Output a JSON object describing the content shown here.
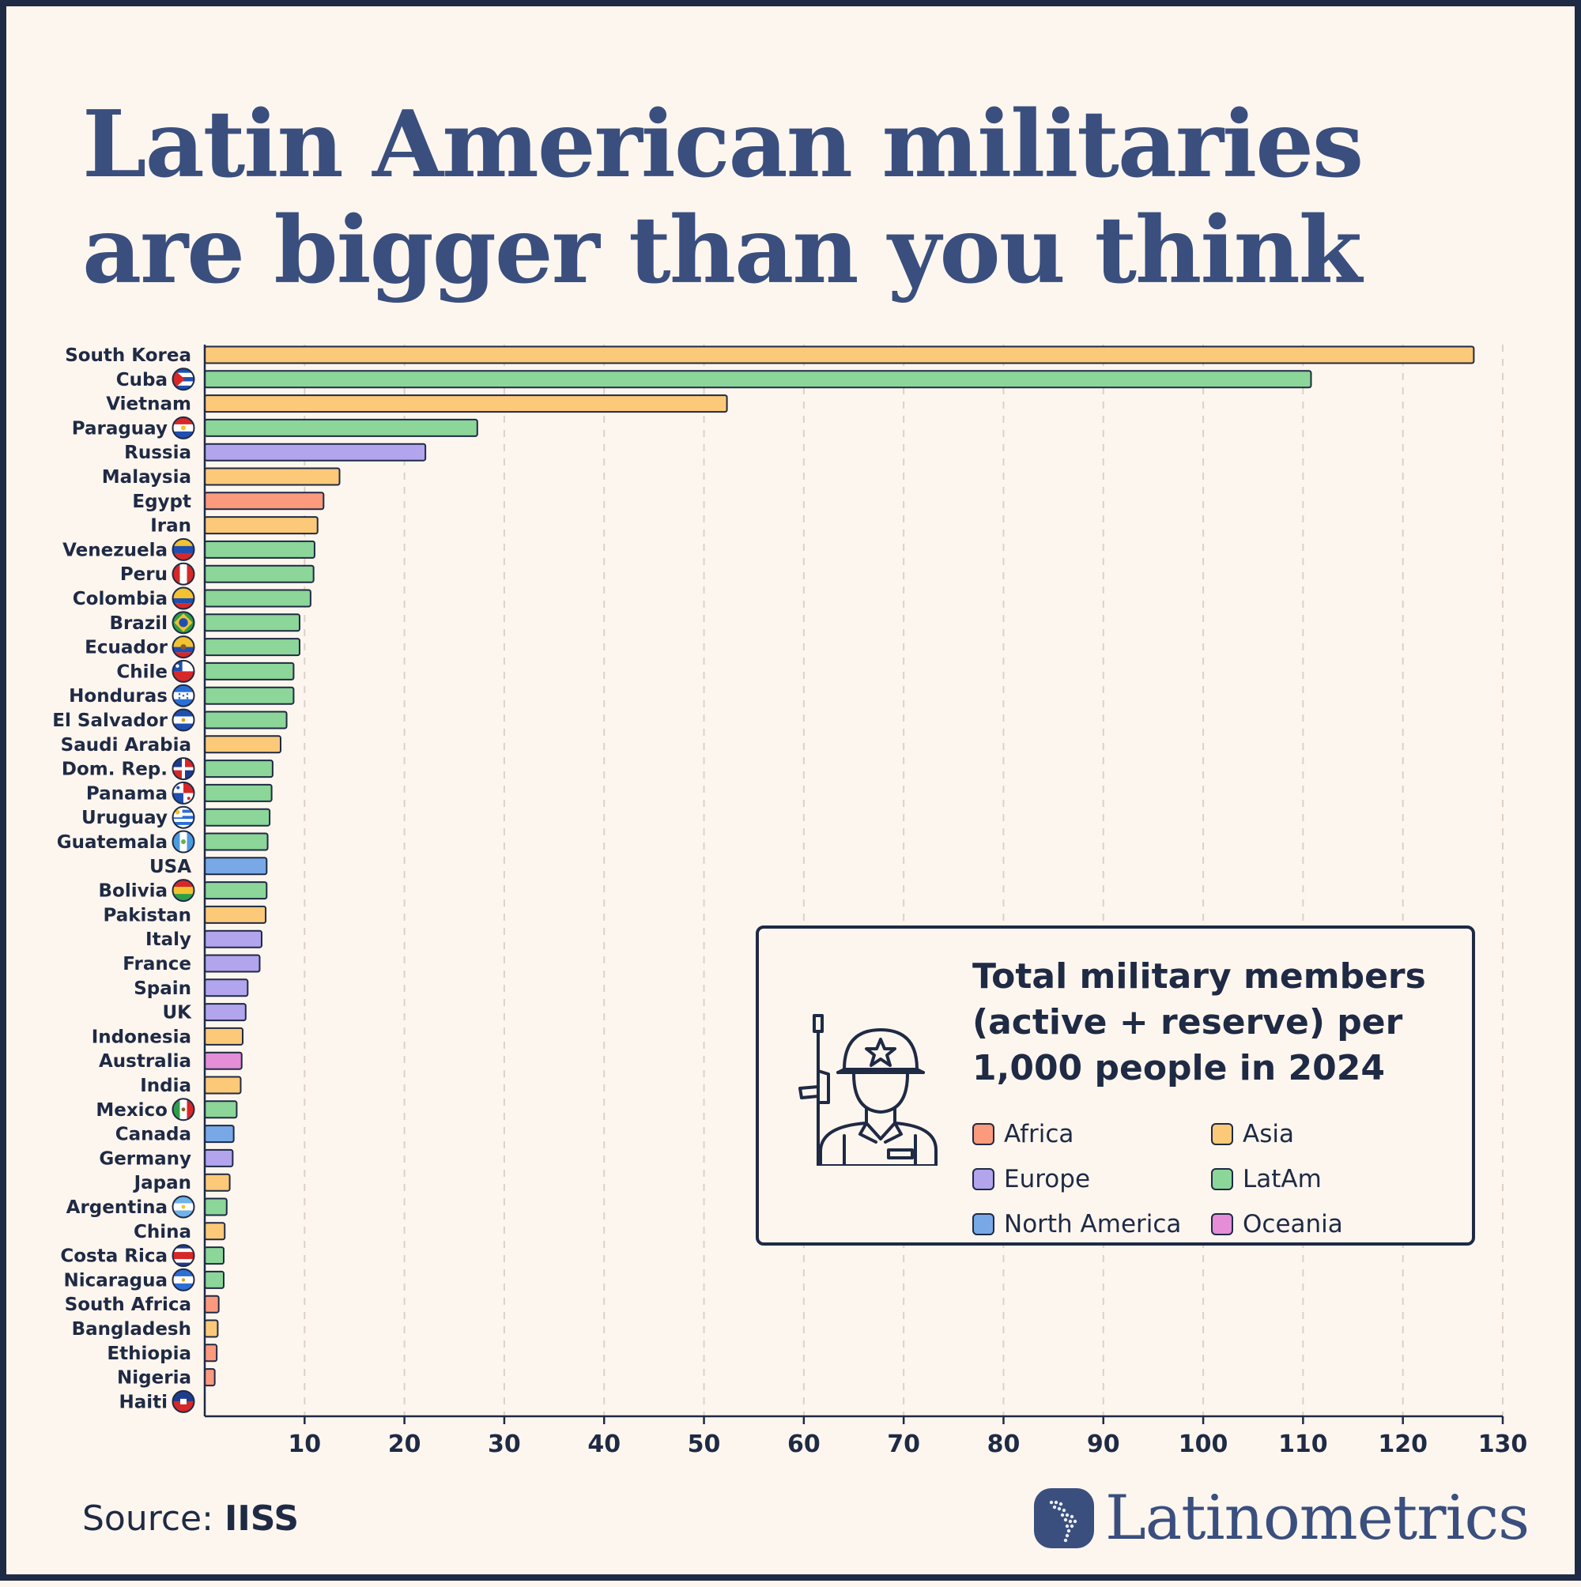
{
  "title": "Latin American militaries are bigger than you think",
  "legend": {
    "title": "Total military members (active + reserve) per 1,000 people in 2024",
    "items": [
      {
        "label": "Africa",
        "color": "#fc9a7e"
      },
      {
        "label": "Asia",
        "color": "#fcc978"
      },
      {
        "label": "Europe",
        "color": "#b3a4ee"
      },
      {
        "label": "LatAm",
        "color": "#8bd698"
      },
      {
        "label": "North America",
        "color": "#78a9e6"
      },
      {
        "label": "Oceania",
        "color": "#e38ed6"
      }
    ]
  },
  "source": {
    "prefix": "Source:",
    "name": "IISS"
  },
  "brand": "Latinometrics",
  "chart_data": {
    "type": "bar",
    "orientation": "horizontal",
    "xlim": [
      0,
      130
    ],
    "xticks": [
      10,
      20,
      30,
      40,
      50,
      60,
      70,
      80,
      90,
      100,
      110,
      120,
      130
    ],
    "grid": true,
    "bars": [
      {
        "label": "South Korea",
        "value": 127.1,
        "region": "Asia",
        "flag": null
      },
      {
        "label": "Cuba",
        "value": 110.8,
        "region": "LatAm",
        "flag": "cu"
      },
      {
        "label": "Vietnam",
        "value": 52.3,
        "region": "Asia",
        "flag": null
      },
      {
        "label": "Paraguay",
        "value": 27.3,
        "region": "LatAm",
        "flag": "py"
      },
      {
        "label": "Russia",
        "value": 22.1,
        "region": "Europe",
        "flag": null
      },
      {
        "label": "Malaysia",
        "value": 13.5,
        "region": "Asia",
        "flag": null
      },
      {
        "label": "Egypt",
        "value": 11.9,
        "region": "Africa",
        "flag": null
      },
      {
        "label": "Iran",
        "value": 11.3,
        "region": "Asia",
        "flag": null
      },
      {
        "label": "Venezuela",
        "value": 11.0,
        "region": "LatAm",
        "flag": "ve"
      },
      {
        "label": "Peru",
        "value": 10.9,
        "region": "LatAm",
        "flag": "pe"
      },
      {
        "label": "Colombia",
        "value": 10.6,
        "region": "LatAm",
        "flag": "co"
      },
      {
        "label": "Brazil",
        "value": 9.5,
        "region": "LatAm",
        "flag": "br"
      },
      {
        "label": "Ecuador",
        "value": 9.5,
        "region": "LatAm",
        "flag": "ec"
      },
      {
        "label": "Chile",
        "value": 8.9,
        "region": "LatAm",
        "flag": "cl"
      },
      {
        "label": "Honduras",
        "value": 8.9,
        "region": "LatAm",
        "flag": "hn"
      },
      {
        "label": "El Salvador",
        "value": 8.2,
        "region": "LatAm",
        "flag": "sv"
      },
      {
        "label": "Saudi Arabia",
        "value": 7.6,
        "region": "Asia",
        "flag": null
      },
      {
        "label": "Dom. Rep.",
        "value": 6.8,
        "region": "LatAm",
        "flag": "do"
      },
      {
        "label": "Panama",
        "value": 6.7,
        "region": "LatAm",
        "flag": "pa"
      },
      {
        "label": "Uruguay",
        "value": 6.5,
        "region": "LatAm",
        "flag": "uy"
      },
      {
        "label": "Guatemala",
        "value": 6.3,
        "region": "LatAm",
        "flag": "gt"
      },
      {
        "label": "USA",
        "value": 6.2,
        "region": "North America",
        "flag": null
      },
      {
        "label": "Bolivia",
        "value": 6.2,
        "region": "LatAm",
        "flag": "bo"
      },
      {
        "label": "Pakistan",
        "value": 6.1,
        "region": "Asia",
        "flag": null
      },
      {
        "label": "Italy",
        "value": 5.7,
        "region": "Europe",
        "flag": null
      },
      {
        "label": "France",
        "value": 5.5,
        "region": "Europe",
        "flag": null
      },
      {
        "label": "Spain",
        "value": 4.3,
        "region": "Europe",
        "flag": null
      },
      {
        "label": "UK",
        "value": 4.1,
        "region": "Europe",
        "flag": null
      },
      {
        "label": "Indonesia",
        "value": 3.8,
        "region": "Asia",
        "flag": null
      },
      {
        "label": "Australia",
        "value": 3.7,
        "region": "Oceania",
        "flag": null
      },
      {
        "label": "India",
        "value": 3.6,
        "region": "Asia",
        "flag": null
      },
      {
        "label": "Mexico",
        "value": 3.2,
        "region": "LatAm",
        "flag": "mx"
      },
      {
        "label": "Canada",
        "value": 2.9,
        "region": "North America",
        "flag": null
      },
      {
        "label": "Germany",
        "value": 2.8,
        "region": "Europe",
        "flag": null
      },
      {
        "label": "Japan",
        "value": 2.5,
        "region": "Asia",
        "flag": null
      },
      {
        "label": "Argentina",
        "value": 2.2,
        "region": "LatAm",
        "flag": "ar"
      },
      {
        "label": "China",
        "value": 2.0,
        "region": "Asia",
        "flag": null
      },
      {
        "label": "Costa Rica",
        "value": 1.9,
        "region": "LatAm",
        "flag": "cr"
      },
      {
        "label": "Nicaragua",
        "value": 1.9,
        "region": "LatAm",
        "flag": "ni"
      },
      {
        "label": "South Africa",
        "value": 1.4,
        "region": "Africa",
        "flag": null
      },
      {
        "label": "Bangladesh",
        "value": 1.3,
        "region": "Asia",
        "flag": null
      },
      {
        "label": "Ethiopia",
        "value": 1.2,
        "region": "Africa",
        "flag": null
      },
      {
        "label": "Nigeria",
        "value": 1.0,
        "region": "Africa",
        "flag": null
      },
      {
        "label": "Haiti",
        "value": 0.0,
        "region": "LatAm",
        "flag": "ht"
      }
    ]
  }
}
